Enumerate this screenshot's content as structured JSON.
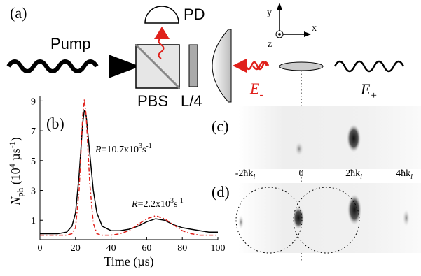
{
  "panel_a": {
    "label": "(a)",
    "pump": "Pump",
    "pd": "PD",
    "pbs": "PBS",
    "quarter_wave": "L/4",
    "e_minus": {
      "main": "E",
      "sub": "-"
    },
    "e_plus": {
      "main": "E",
      "sub": "+"
    },
    "axes": {
      "x": "x",
      "y": "y",
      "z": "z"
    }
  },
  "chart_data": {
    "type": "line",
    "panel_label": "(b)",
    "x_label": "Time (µs)",
    "y_label": {
      "main": "N",
      "sub": "ph",
      "unit": " (10",
      "exp": "4",
      "unit_end": " µs",
      "exp2": "-1",
      "close": ")"
    },
    "x": [
      0,
      5,
      10,
      15,
      18,
      20,
      22,
      24,
      25,
      26,
      28,
      30,
      32,
      35,
      40,
      45,
      50,
      55,
      60,
      65,
      70,
      75,
      80,
      85,
      90,
      95,
      100
    ],
    "series": [
      {
        "color": "#000000",
        "style": "solid",
        "values": [
          0.1,
          0.1,
          0.1,
          0.2,
          0.6,
          1.5,
          4,
          7.5,
          8.4,
          8,
          5.5,
          3,
          1.5,
          0.6,
          0.3,
          0.3,
          0.4,
          0.6,
          0.9,
          1.1,
          1.0,
          0.7,
          0.5,
          0.4,
          0.3,
          0.2,
          0.2
        ]
      },
      {
        "color": "#e0201b",
        "style": "dashdot",
        "values": [
          0,
          0,
          0,
          0,
          0.1,
          0.5,
          3,
          8,
          9.1,
          8,
          3.5,
          0.8,
          0.1,
          0,
          0,
          0.1,
          0.3,
          0.7,
          1.1,
          1.3,
          1.1,
          0.7,
          0.3,
          0.1,
          0,
          0,
          0
        ]
      }
    ],
    "xlim": [
      0,
      100
    ],
    "xticks": [
      0,
      20,
      40,
      60,
      80,
      100
    ],
    "ylim": [
      -0.3,
      9.3
    ],
    "yticks": [
      1,
      3,
      5,
      7,
      9
    ],
    "annotations": [
      {
        "r": "R",
        "eq": "=10.7x10",
        "exp": "3",
        "unit": "s",
        "exp2": "-1"
      },
      {
        "r": "R",
        "eq": "=2.2x10",
        "exp": "3",
        "unit": "s",
        "exp2": "-1"
      }
    ]
  },
  "panel_c": {
    "label": "(c)"
  },
  "panel_d": {
    "label": "(d)",
    "ticks": [
      {
        "main": "-2ħk",
        "sub": "l"
      },
      {
        "main": "0"
      },
      {
        "main": "2ħk",
        "sub": "l"
      },
      {
        "main": "4ħk",
        "sub": "l"
      }
    ]
  }
}
